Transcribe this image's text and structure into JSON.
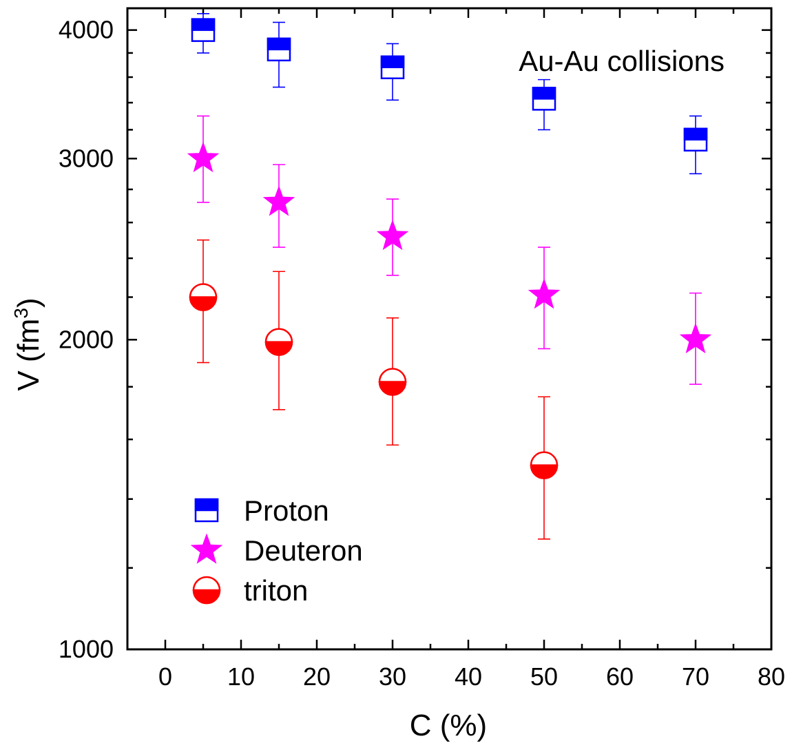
{
  "chart_data": {
    "type": "scatter",
    "title": "",
    "annotation": "Au-Au collisions",
    "xlabel": "C (%)",
    "ylabel_main": "V (fm",
    "ylabel_sup": "3",
    "ylabel_close": ")",
    "xlim": [
      -5,
      80
    ],
    "ylim": [
      1000,
      4200
    ],
    "yscale": "log",
    "x_ticks": [
      0,
      10,
      20,
      30,
      40,
      50,
      60,
      70,
      80
    ],
    "x_tick_labels": [
      "0",
      "10",
      "20",
      "30",
      "40",
      "50",
      "60",
      "70",
      "80"
    ],
    "y_ticks": [
      1000,
      2000,
      3000,
      4000
    ],
    "y_tick_labels": [
      "1000",
      "2000",
      "3000",
      "4000"
    ],
    "grid": false,
    "legend_position": "bottom-left",
    "series": [
      {
        "name": "Proton",
        "marker": "half-filled-square",
        "color": "#0000ff",
        "x": [
          5,
          15,
          30,
          50,
          70
        ],
        "y": [
          4000,
          3830,
          3680,
          3430,
          3130
        ],
        "yerr_low": [
          3800,
          3520,
          3420,
          3200,
          2900
        ],
        "yerr_high": [
          4150,
          4070,
          3880,
          3580,
          3300
        ]
      },
      {
        "name": "Deuteron",
        "marker": "star",
        "color": "#ff00ff",
        "x": [
          5,
          15,
          30,
          50,
          70
        ],
        "y": [
          3000,
          2720,
          2520,
          2210,
          2000
        ],
        "yerr_low": [
          2720,
          2460,
          2310,
          1960,
          1810
        ],
        "yerr_high": [
          3300,
          2960,
          2740,
          2460,
          2220
        ]
      },
      {
        "name": "triton",
        "marker": "half-filled-circle",
        "color": "#ff0000",
        "x": [
          5,
          15,
          30,
          50
        ],
        "y": [
          2200,
          1990,
          1820,
          1510
        ],
        "yerr_low": [
          1900,
          1710,
          1580,
          1280
        ],
        "yerr_high": [
          2500,
          2330,
          2100,
          1760
        ]
      }
    ]
  }
}
